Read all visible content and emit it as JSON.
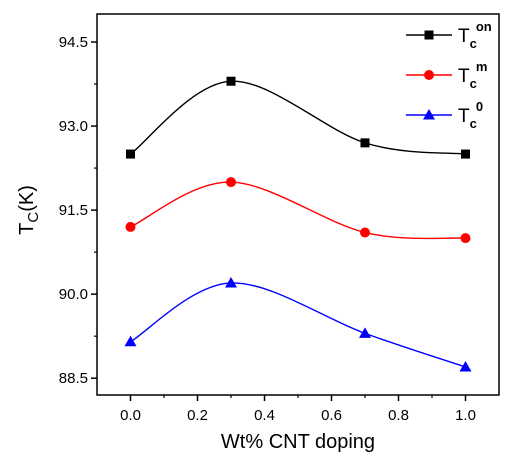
{
  "chart_data": {
    "type": "line",
    "xlabel": "Wt% CNT doping",
    "ylabel": {
      "main": "T",
      "sub": "C",
      "rest": "(K)"
    },
    "xlim": [
      -0.1,
      1.1
    ],
    "ylim": [
      88.2,
      95.0
    ],
    "xticks": [
      0.0,
      0.2,
      0.4,
      0.6,
      0.8,
      1.0
    ],
    "xtick_labels": [
      "0.0",
      "0.2",
      "0.4",
      "0.6",
      "0.8",
      "1.0"
    ],
    "yticks": [
      88.5,
      90.0,
      91.5,
      93.0,
      94.5
    ],
    "ytick_labels": [
      "88.5",
      "90.0",
      "91.5",
      "93.0",
      "94.5"
    ],
    "grid": false,
    "legend_position": "top-right",
    "series": [
      {
        "name": "T_c^on",
        "legend_base": "T",
        "legend_sub": "c",
        "legend_sup": "on",
        "color": "#000000",
        "marker": "square",
        "x": [
          0.0,
          0.3,
          0.7,
          1.0
        ],
        "y": [
          92.5,
          93.8,
          92.7,
          92.5
        ]
      },
      {
        "name": "T_c^m",
        "legend_base": "T",
        "legend_sub": "c",
        "legend_sup": "m",
        "color": "#ff0000",
        "marker": "circle",
        "x": [
          0.0,
          0.3,
          0.7,
          1.0
        ],
        "y": [
          91.2,
          92.0,
          91.1,
          91.0
        ]
      },
      {
        "name": "T_c^0",
        "legend_base": "T",
        "legend_sub": "c",
        "legend_sup": "0",
        "color": "#0000ff",
        "marker": "triangle",
        "x": [
          0.0,
          0.3,
          0.7,
          1.0
        ],
        "y": [
          89.15,
          90.2,
          89.3,
          88.7
        ]
      }
    ]
  }
}
